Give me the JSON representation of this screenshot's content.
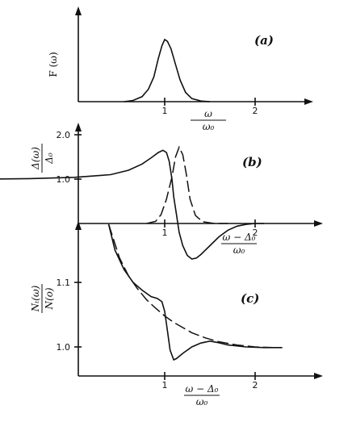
{
  "chart_data": [
    {
      "type": "line",
      "panel_label": "(a)",
      "ylabel": "F (ω)",
      "xlabel_num": "ω",
      "xlabel_den": "ω₀",
      "xticks": [
        {
          "value": 1,
          "label": "1"
        },
        {
          "value": 2,
          "label": "2"
        }
      ],
      "xlim": [
        0,
        2.6
      ],
      "ylim": [
        0,
        1.15
      ],
      "series": [
        {
          "style": "solid",
          "points": [
            [
              0.55,
              0.0
            ],
            [
              0.65,
              0.02
            ],
            [
              0.75,
              0.08
            ],
            [
              0.82,
              0.2
            ],
            [
              0.88,
              0.4
            ],
            [
              0.93,
              0.7
            ],
            [
              0.97,
              0.9
            ],
            [
              1.0,
              1.0
            ],
            [
              1.03,
              0.97
            ],
            [
              1.07,
              0.85
            ],
            [
              1.12,
              0.6
            ],
            [
              1.17,
              0.35
            ],
            [
              1.23,
              0.15
            ],
            [
              1.3,
              0.05
            ],
            [
              1.4,
              0.01
            ],
            [
              1.5,
              0.0
            ]
          ]
        }
      ]
    },
    {
      "type": "line",
      "panel_label": "(b)",
      "ylabel_num": "Δ(ω)",
      "ylabel_den": "Δ₀",
      "xlabel_num": "ω − Δ₀",
      "xlabel_den": "ω₀",
      "xticks": [
        {
          "value": 1,
          "label": "1"
        },
        {
          "value": 2,
          "label": "2"
        }
      ],
      "yticks": [
        {
          "value": 1.0,
          "label": "1.0"
        },
        {
          "value": 2.0,
          "label": "2.0"
        }
      ],
      "xlim": [
        -0.95,
        2.6
      ],
      "ylim": [
        -0.95,
        2.2
      ],
      "series": [
        {
          "style": "solid",
          "points": [
            [
              -0.95,
              1.0
            ],
            [
              -0.5,
              1.01
            ],
            [
              0.0,
              1.04
            ],
            [
              0.4,
              1.1
            ],
            [
              0.6,
              1.2
            ],
            [
              0.75,
              1.34
            ],
            [
              0.85,
              1.48
            ],
            [
              0.93,
              1.6
            ],
            [
              0.98,
              1.65
            ],
            [
              1.02,
              1.6
            ],
            [
              1.05,
              1.4
            ],
            [
              1.08,
              1.0
            ],
            [
              1.1,
              0.6
            ],
            [
              1.13,
              0.2
            ],
            [
              1.16,
              -0.2
            ],
            [
              1.2,
              -0.5
            ],
            [
              1.25,
              -0.72
            ],
            [
              1.3,
              -0.8
            ],
            [
              1.35,
              -0.78
            ],
            [
              1.4,
              -0.7
            ],
            [
              1.5,
              -0.5
            ],
            [
              1.6,
              -0.3
            ],
            [
              1.7,
              -0.15
            ],
            [
              1.8,
              -0.06
            ],
            [
              1.9,
              -0.02
            ],
            [
              2.0,
              0.0
            ],
            [
              2.1,
              0.0
            ]
          ]
        },
        {
          "style": "dashed",
          "points": [
            [
              0.8,
              0.0
            ],
            [
              0.9,
              0.05
            ],
            [
              0.96,
              0.2
            ],
            [
              1.02,
              0.55
            ],
            [
              1.08,
              1.05
            ],
            [
              1.12,
              1.5
            ],
            [
              1.16,
              1.72
            ],
            [
              1.2,
              1.55
            ],
            [
              1.24,
              1.1
            ],
            [
              1.28,
              0.55
            ],
            [
              1.34,
              0.18
            ],
            [
              1.42,
              0.04
            ],
            [
              1.55,
              0.0
            ],
            [
              1.7,
              0.0
            ]
          ]
        }
      ]
    },
    {
      "type": "line",
      "panel_label": "(c)",
      "ylabel_num": "Nₜ(ω)",
      "ylabel_den": "N(o)",
      "xlabel_num": "ω − Δ₀",
      "xlabel_den": "ω₀",
      "xticks": [
        {
          "value": 1,
          "label": "1"
        },
        {
          "value": 2,
          "label": "2"
        }
      ],
      "yticks": [
        {
          "value": 1.0,
          "label": "1.0"
        },
        {
          "value": 1.1,
          "label": "1.1"
        }
      ],
      "xlim": [
        -0.95,
        2.6
      ],
      "ylim": [
        0.955,
        1.2
      ],
      "series": [
        {
          "style": "solid",
          "points": [
            [
              0.38,
              1.19
            ],
            [
              0.45,
              1.15
            ],
            [
              0.55,
              1.12
            ],
            [
              0.65,
              1.1
            ],
            [
              0.75,
              1.088
            ],
            [
              0.85,
              1.078
            ],
            [
              0.92,
              1.075
            ],
            [
              0.97,
              1.07
            ],
            [
              1.0,
              1.055
            ],
            [
              1.03,
              1.025
            ],
            [
              1.06,
              0.995
            ],
            [
              1.1,
              0.98
            ],
            [
              1.13,
              0.982
            ],
            [
              1.2,
              0.99
            ],
            [
              1.3,
              1.0
            ],
            [
              1.4,
              1.006
            ],
            [
              1.5,
              1.009
            ],
            [
              1.58,
              1.007
            ],
            [
              1.7,
              1.003
            ],
            [
              1.9,
              1.0
            ],
            [
              2.1,
              0.999
            ],
            [
              2.3,
              0.999
            ]
          ]
        },
        {
          "style": "dashed",
          "points": [
            [
              0.38,
              1.19
            ],
            [
              0.5,
              1.138
            ],
            [
              0.6,
              1.11
            ],
            [
              0.7,
              1.09
            ],
            [
              0.8,
              1.073
            ],
            [
              0.9,
              1.06
            ],
            [
              1.0,
              1.048
            ],
            [
              1.1,
              1.038
            ],
            [
              1.2,
              1.03
            ],
            [
              1.3,
              1.022
            ],
            [
              1.45,
              1.014
            ],
            [
              1.6,
              1.008
            ],
            [
              1.8,
              1.003
            ],
            [
              2.0,
              1.0
            ],
            [
              2.2,
              0.999
            ],
            [
              2.3,
              0.999
            ]
          ]
        }
      ]
    }
  ]
}
